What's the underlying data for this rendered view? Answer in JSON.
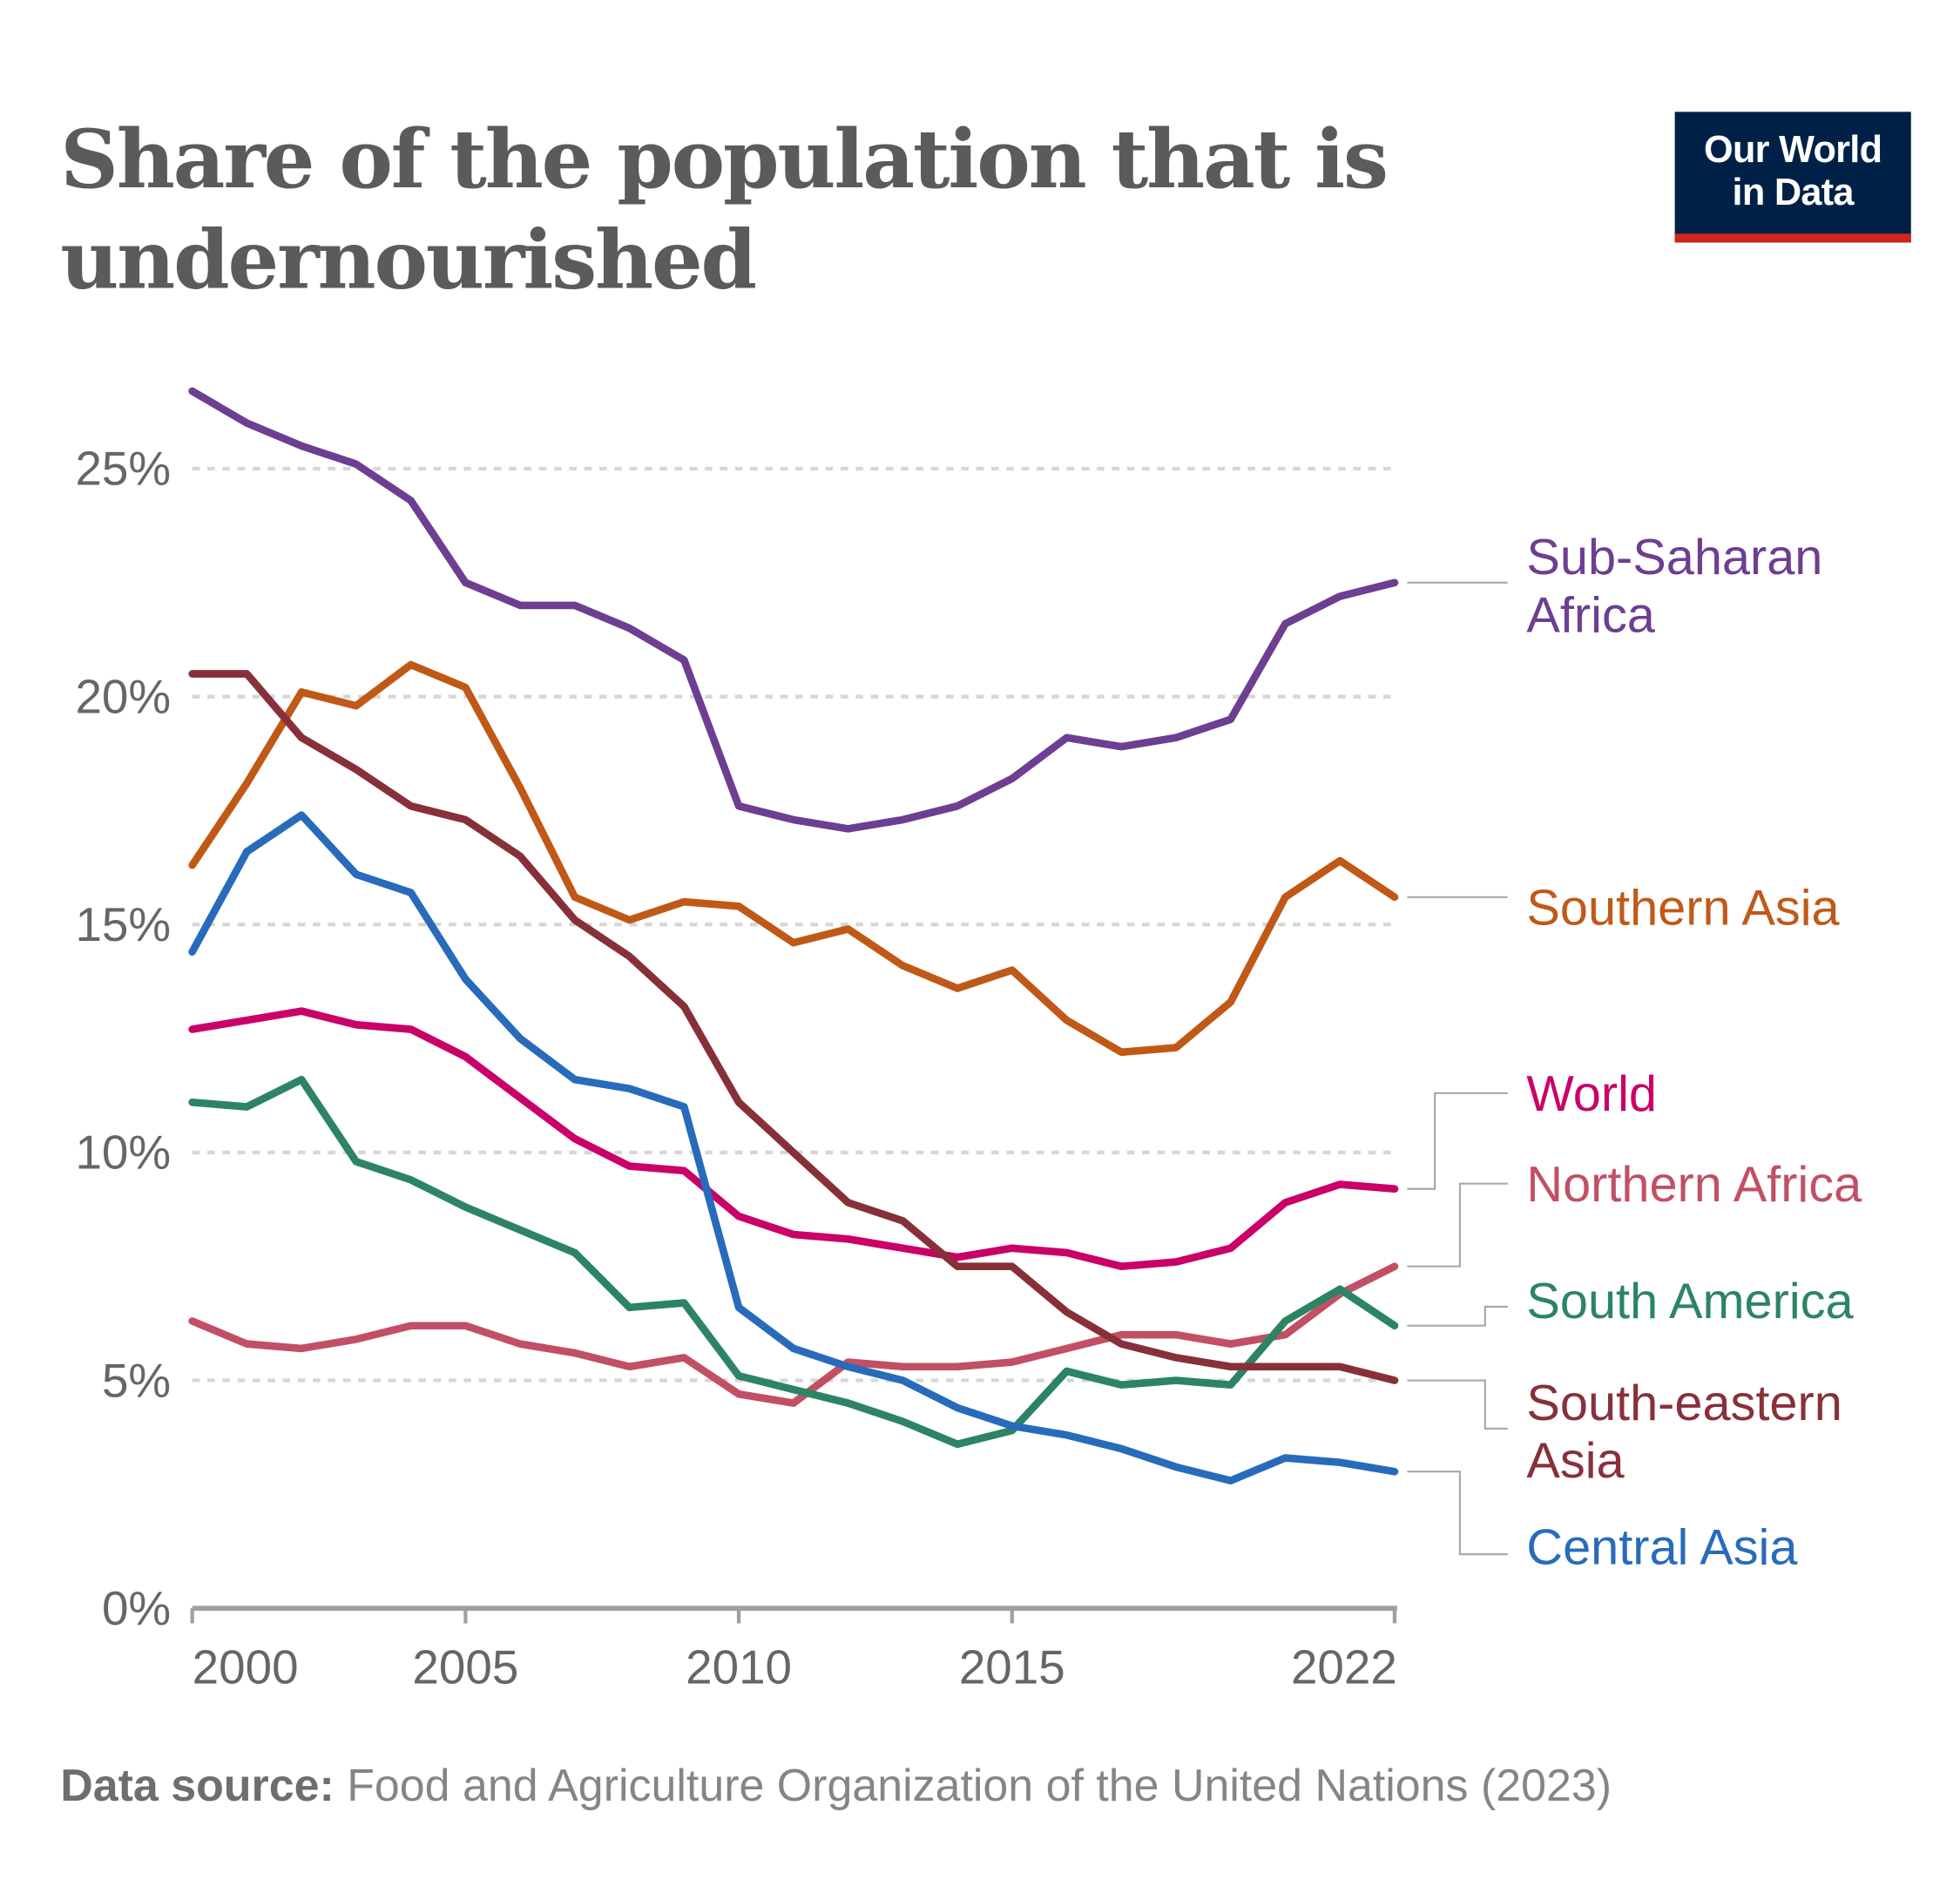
{
  "chart_data": {
    "type": "line",
    "title": "Share of the population that is undernourished",
    "x": [
      2000,
      2001,
      2002,
      2003,
      2004,
      2005,
      2006,
      2007,
      2008,
      2009,
      2010,
      2011,
      2012,
      2013,
      2014,
      2015,
      2016,
      2017,
      2018,
      2019,
      2020,
      2021,
      2022
    ],
    "xticks": [
      "2000",
      "2005",
      "2010",
      "2015",
      "2022"
    ],
    "yticks": [
      "0%",
      "5%",
      "10%",
      "15%",
      "20%",
      "25%"
    ],
    "ylim": [
      0,
      27
    ],
    "grid": "horizontal dotted",
    "legend": "right, inline labels",
    "series": [
      {
        "name": "Sub-Saharan Africa",
        "color": "#6d3e91",
        "values": [
          26.7,
          26.0,
          25.5,
          25.1,
          24.3,
          22.5,
          22.0,
          22.0,
          21.5,
          20.8,
          17.6,
          17.3,
          17.1,
          17.3,
          17.6,
          18.2,
          19.1,
          18.9,
          19.1,
          19.5,
          21.6,
          22.2,
          22.5
        ]
      },
      {
        "name": "Southern Asia",
        "color": "#c05917",
        "values": [
          16.3,
          18.1,
          20.1,
          19.8,
          20.7,
          20.2,
          18.0,
          15.6,
          15.1,
          15.5,
          15.4,
          14.6,
          14.9,
          14.1,
          13.6,
          14.0,
          12.9,
          12.2,
          12.3,
          13.3,
          15.6,
          16.4,
          15.6
        ]
      },
      {
        "name": "World",
        "color": "#ca0068",
        "values": [
          12.7,
          12.9,
          13.1,
          12.8,
          12.7,
          12.1,
          11.2,
          10.3,
          9.7,
          9.6,
          8.6,
          8.2,
          8.1,
          7.9,
          7.7,
          7.9,
          7.8,
          7.5,
          7.6,
          7.9,
          8.9,
          9.3,
          9.2
        ]
      },
      {
        "name": "Northern Africa",
        "color": "#c15065",
        "values": [
          6.3,
          5.8,
          5.7,
          5.9,
          6.2,
          6.2,
          5.8,
          5.6,
          5.3,
          5.5,
          4.7,
          4.5,
          5.4,
          5.3,
          5.3,
          5.4,
          5.7,
          6.0,
          6.0,
          5.8,
          6.0,
          6.9,
          7.5
        ]
      },
      {
        "name": "South America",
        "color": "#2c8465",
        "values": [
          11.1,
          11.0,
          11.6,
          9.8,
          9.4,
          8.8,
          8.3,
          7.8,
          6.6,
          6.7,
          5.1,
          4.8,
          4.5,
          4.1,
          3.6,
          3.9,
          5.2,
          4.9,
          5.0,
          4.9,
          6.3,
          7.0,
          6.2
        ]
      },
      {
        "name": "South-eastern Asia",
        "color": "#883039",
        "values": [
          20.5,
          20.5,
          19.1,
          18.4,
          17.6,
          17.3,
          16.5,
          15.1,
          14.3,
          13.2,
          11.1,
          10.0,
          8.9,
          8.5,
          7.5,
          7.5,
          6.5,
          5.8,
          5.5,
          5.3,
          5.3,
          5.3,
          5.0
        ]
      },
      {
        "name": "Central Asia",
        "color": "#286bbb",
        "values": [
          14.4,
          16.6,
          17.4,
          16.1,
          15.7,
          13.8,
          12.5,
          11.6,
          11.4,
          11.0,
          6.6,
          5.7,
          5.3,
          5.0,
          4.4,
          4.0,
          3.8,
          3.5,
          3.1,
          2.8,
          3.3,
          3.2,
          3.0
        ]
      }
    ]
  },
  "logo": {
    "line1": "Our World",
    "line2": "in Data"
  },
  "source": {
    "label": "Data source:",
    "text": "Food and Agriculture Organization of the United Nations (2023)"
  }
}
